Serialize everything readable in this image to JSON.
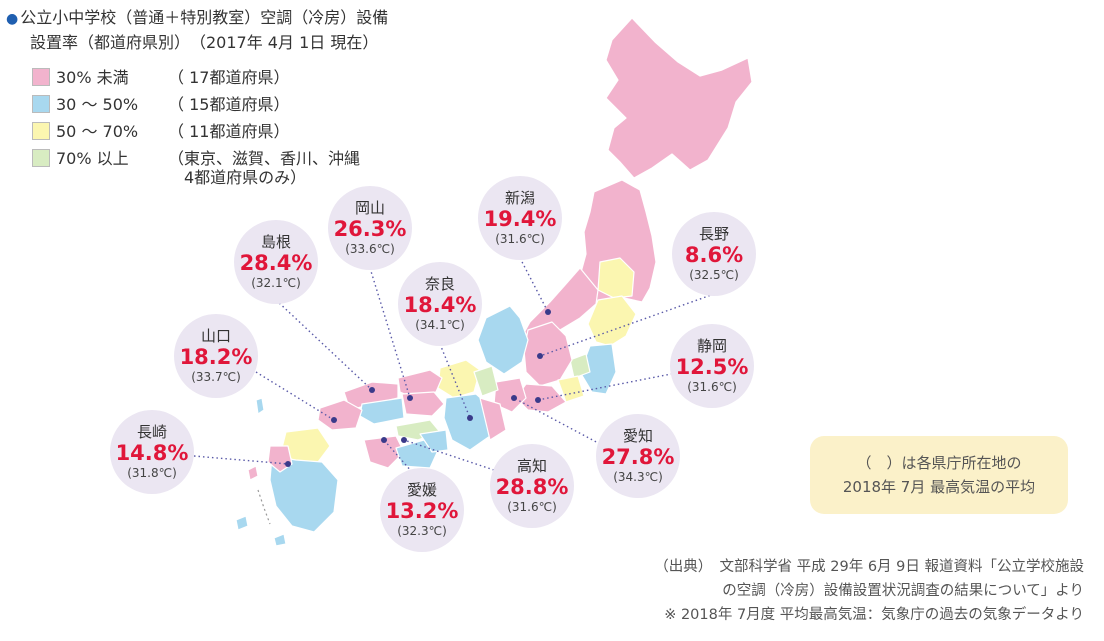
{
  "title": {
    "line1": "公立小中学校（普通＋特別教室）空調（冷房）設備",
    "line2": "設置率（都道府県別）　（2017年 4月 1日 現在）"
  },
  "legend": [
    {
      "range": "30% 未満",
      "count": "（ 17都道府県）",
      "color": "#f2b3cd"
    },
    {
      "range": "30 ～ 50%",
      "count": "（ 15都道府県）",
      "color": "#a8d8ef"
    },
    {
      "range": "50 ～ 70%",
      "count": "（ 11都道府県）",
      "color": "#fbf6b0"
    },
    {
      "range": "70% 以上",
      "count": "（東京、滋賀、香川、沖縄",
      "color": "#d8ecc2"
    }
  ],
  "legend_note": "4都道府県のみ）",
  "prefectures": [
    {
      "name": "岡山",
      "rate": "26.3%",
      "temp": "(33.6℃)"
    },
    {
      "name": "新潟",
      "rate": "19.4%",
      "temp": "(31.6℃)"
    },
    {
      "name": "島根",
      "rate": "28.4%",
      "temp": "(32.1℃)"
    },
    {
      "name": "長野",
      "rate": "8.6%",
      "temp": "(32.5℃)"
    },
    {
      "name": "奈良",
      "rate": "18.4%",
      "temp": "(34.1℃)"
    },
    {
      "name": "山口",
      "rate": "18.2%",
      "temp": "(33.7℃)"
    },
    {
      "name": "静岡",
      "rate": "12.5%",
      "temp": "(31.6℃)"
    },
    {
      "name": "長崎",
      "rate": "14.8%",
      "temp": "(31.8℃)"
    },
    {
      "name": "愛知",
      "rate": "27.8%",
      "temp": "(34.3℃)"
    },
    {
      "name": "高知",
      "rate": "28.8%",
      "temp": "(31.6℃)"
    },
    {
      "name": "愛媛",
      "rate": "13.2%",
      "temp": "(32.3℃)"
    }
  ],
  "note": {
    "line1": "（　）は各県庁所在地の",
    "line2": "2018年 7月 最高気温の平均"
  },
  "source": {
    "line1": "（出典）　文部科学省 平成 29年 6月 9日 報道資料「公立学校施設",
    "line2": "の空調（冷房）設備設置状況調査の結果について」より",
    "line3": "※ 2018年 7月度 平均最高気温：気象庁の過去の気象データより"
  },
  "colors": {
    "bullet": "#1f5fb0",
    "rate": "#e0163a",
    "bubble": "#ebe6f2",
    "leader": "#5a5aa8",
    "note_bg": "#fbf1c9"
  }
}
